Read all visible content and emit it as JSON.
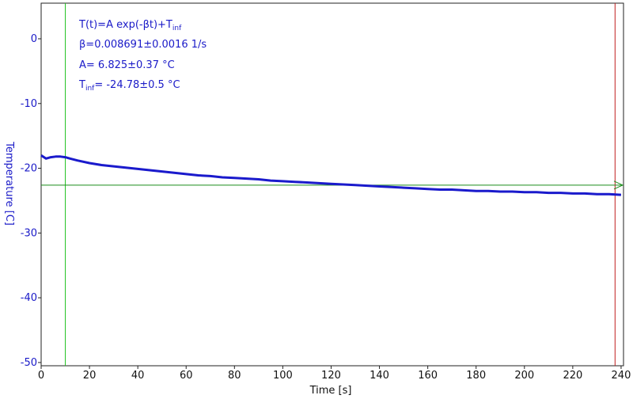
{
  "chart_data": {
    "type": "line",
    "title": "",
    "xlabel": "Time [s]",
    "ylabel": "Temperature [C]",
    "xlim": [
      0,
      241
    ],
    "ylim": [
      -50.5,
      5.5
    ],
    "x_ticks": [
      0,
      20,
      40,
      60,
      80,
      100,
      120,
      140,
      160,
      180,
      200,
      220,
      240
    ],
    "y_ticks": [
      0,
      -10,
      -20,
      -30,
      -40,
      -50
    ],
    "grid": false,
    "annotations": {
      "formula_main": "T(t)=A exp(-βt)+T",
      "formula_sub": "inf",
      "beta": "β=0.008691±0.0016 1/s",
      "amplitude": "A= 6.825±0.37 °C",
      "tinf_prefix": "T",
      "tinf_sub": "inf",
      "tinf_value": "= -24.78±0.5 °C"
    },
    "markers": {
      "vertical_green_x": 10,
      "vertical_red_x": 237.5,
      "horizontal_green_y": -22.6
    },
    "series": [
      {
        "color": "#1a1acc",
        "x": [
          0,
          2,
          4,
          6,
          8,
          10,
          12,
          15,
          20,
          25,
          30,
          35,
          40,
          45,
          50,
          55,
          60,
          65,
          70,
          75,
          80,
          85,
          90,
          95,
          100,
          105,
          110,
          115,
          120,
          125,
          130,
          135,
          140,
          145,
          150,
          155,
          160,
          165,
          170,
          175,
          180,
          185,
          190,
          195,
          200,
          205,
          210,
          215,
          220,
          225,
          230,
          235,
          240
        ],
        "y": [
          -18.0,
          -18.5,
          -18.3,
          -18.2,
          -18.2,
          -18.3,
          -18.5,
          -18.8,
          -19.2,
          -19.5,
          -19.7,
          -19.9,
          -20.1,
          -20.3,
          -20.5,
          -20.7,
          -20.9,
          -21.1,
          -21.2,
          -21.4,
          -21.5,
          -21.6,
          -21.7,
          -21.9,
          -22.0,
          -22.1,
          -22.2,
          -22.3,
          -22.4,
          -22.5,
          -22.6,
          -22.7,
          -22.8,
          -22.9,
          -23.0,
          -23.1,
          -23.2,
          -23.3,
          -23.3,
          -23.4,
          -23.5,
          -23.5,
          -23.6,
          -23.6,
          -23.7,
          -23.7,
          -23.8,
          -23.8,
          -23.9,
          -23.9,
          -24.0,
          -24.0,
          -24.1
        ]
      }
    ]
  }
}
